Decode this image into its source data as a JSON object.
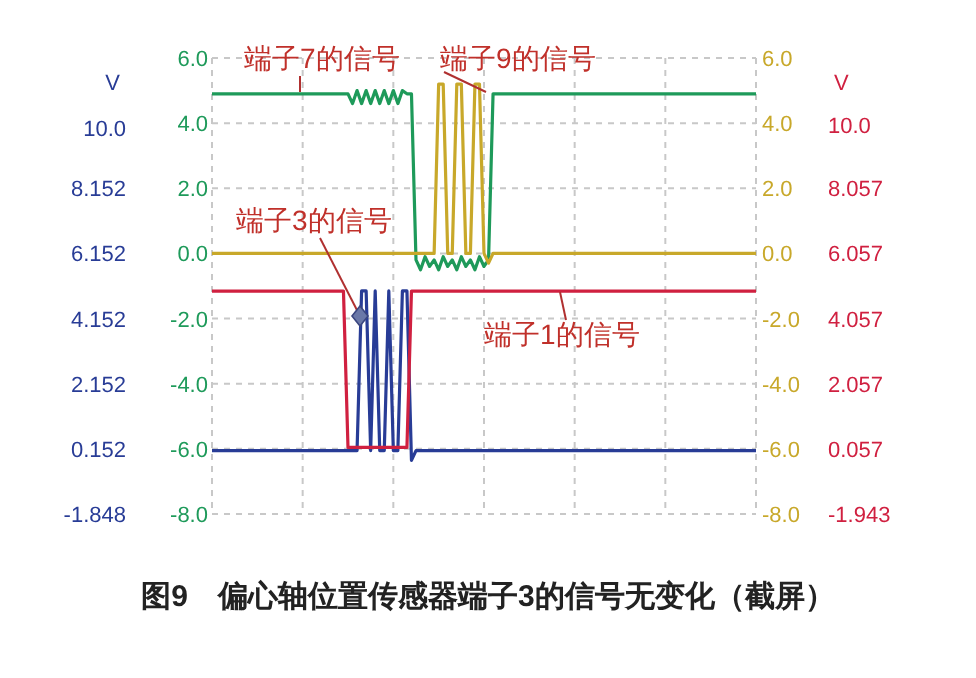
{
  "chart_data": {
    "type": "line",
    "categories": [
      null,
      null,
      null,
      null,
      null,
      null,
      null,
      null,
      null,
      null,
      null,
      null,
      null,
      null,
      null,
      null,
      null,
      null,
      null,
      null,
      null,
      null,
      null,
      null,
      null,
      null,
      null,
      null,
      null,
      null,
      null,
      null,
      null,
      null,
      null,
      null,
      null,
      null,
      null,
      null,
      null,
      null,
      null,
      null,
      null,
      null,
      null,
      null,
      null,
      null,
      null,
      null,
      null,
      null,
      null,
      null,
      null,
      null,
      null,
      null,
      null,
      null,
      null,
      null,
      null,
      null,
      null,
      null,
      null,
      null,
      null,
      null,
      null,
      null,
      null,
      null,
      null,
      null,
      null,
      null,
      null,
      null,
      null,
      null,
      null,
      null,
      null,
      null,
      null,
      null,
      null,
      null,
      null,
      null,
      null,
      null,
      null,
      null,
      null,
      null,
      null,
      null,
      null,
      null,
      null,
      null,
      null,
      null,
      null,
      null,
      null,
      null,
      null,
      null,
      null,
      null,
      null,
      null,
      null,
      null,
      null
    ],
    "series": [
      {
        "name": "端子7的信号",
        "color": "#1e9a5a",
        "values": [
          4.9,
          4.9,
          4.9,
          4.9,
          4.9,
          4.9,
          4.9,
          4.9,
          4.9,
          4.9,
          4.9,
          4.9,
          4.9,
          4.9,
          4.9,
          4.9,
          4.9,
          4.9,
          4.9,
          4.9,
          4.9,
          4.9,
          4.9,
          4.9,
          4.9,
          4.9,
          4.9,
          4.9,
          4.9,
          4.9,
          4.9,
          4.6,
          5.0,
          4.6,
          5.0,
          4.6,
          5.0,
          4.6,
          5.0,
          4.6,
          5.0,
          4.6,
          5.0,
          4.9,
          4.9,
          -0.2,
          -0.5,
          -0.1,
          -0.4,
          -0.2,
          -0.5,
          -0.1,
          -0.4,
          -0.2,
          -0.5,
          -0.1,
          -0.4,
          -0.2,
          -0.5,
          -0.1,
          -0.4,
          -0.2,
          4.9,
          4.9,
          4.9,
          4.9,
          4.9,
          4.9,
          4.9,
          4.9,
          4.9,
          4.9,
          4.9,
          4.9,
          4.9,
          4.9,
          4.9,
          4.9,
          4.9,
          4.9,
          4.9,
          4.9,
          4.9,
          4.9,
          4.9,
          4.9,
          4.9,
          4.9,
          4.9,
          4.9,
          4.9,
          4.9,
          4.9,
          4.9,
          4.9,
          4.9,
          4.9,
          4.9,
          4.9,
          4.9,
          4.9,
          4.9,
          4.9,
          4.9,
          4.9,
          4.9,
          4.9,
          4.9,
          4.9,
          4.9,
          4.9,
          4.9,
          4.9,
          4.9,
          4.9,
          4.9,
          4.9,
          4.9,
          4.9,
          4.9,
          4.9
        ]
      },
      {
        "name": "端子9的信号",
        "color": "#c8a82a",
        "values": [
          0.0,
          0.0,
          0.0,
          0.0,
          0.0,
          0.0,
          0.0,
          0.0,
          0.0,
          0.0,
          0.0,
          0.0,
          0.0,
          0.0,
          0.0,
          0.0,
          0.0,
          0.0,
          0.0,
          0.0,
          0.0,
          0.0,
          0.0,
          0.0,
          0.0,
          0.0,
          0.0,
          0.0,
          0.0,
          0.0,
          0.0,
          0.0,
          0.0,
          0.0,
          0.0,
          0.0,
          0.0,
          0.0,
          0.0,
          0.0,
          0.0,
          0.0,
          0.0,
          0.0,
          0.0,
          0.0,
          0.0,
          0.0,
          0.0,
          0.0,
          5.2,
          5.2,
          0.0,
          0.0,
          5.2,
          5.2,
          0.0,
          0.0,
          5.2,
          5.2,
          0.0,
          -0.3,
          0.0,
          0.0,
          0.0,
          0.0,
          0.0,
          0.0,
          0.0,
          0.0,
          0.0,
          0.0,
          0.0,
          0.0,
          0.0,
          0.0,
          0.0,
          0.0,
          0.0,
          0.0,
          0.0,
          0.0,
          0.0,
          0.0,
          0.0,
          0.0,
          0.0,
          0.0,
          0.0,
          0.0,
          0.0,
          0.0,
          0.0,
          0.0,
          0.0,
          0.0,
          0.0,
          0.0,
          0.0,
          0.0,
          0.0,
          0.0,
          0.0,
          0.0,
          0.0,
          0.0,
          0.0,
          0.0,
          0.0,
          0.0,
          0.0,
          0.0,
          0.0,
          0.0,
          0.0,
          0.0,
          0.0,
          0.0,
          0.0,
          0.0,
          0.0
        ]
      },
      {
        "name": "端子3的信号",
        "color": "#283c96",
        "axis": "y3",
        "values": [
          0.1,
          0.1,
          0.1,
          0.1,
          0.1,
          0.1,
          0.1,
          0.1,
          0.1,
          0.1,
          0.1,
          0.1,
          0.1,
          0.1,
          0.1,
          0.1,
          0.1,
          0.1,
          0.1,
          0.1,
          0.1,
          0.1,
          0.1,
          0.1,
          0.1,
          0.1,
          0.1,
          0.1,
          0.1,
          0.1,
          0.1,
          0.1,
          0.1,
          5.0,
          5.0,
          0.1,
          5.0,
          0.1,
          0.1,
          5.0,
          0.1,
          0.1,
          5.0,
          5.0,
          -0.2,
          0.1,
          0.1,
          0.1,
          0.1,
          0.1,
          0.1,
          0.1,
          0.1,
          0.1,
          0.1,
          0.1,
          0.1,
          0.1,
          0.1,
          0.1,
          0.1,
          0.1,
          0.1,
          0.1,
          0.1,
          0.1,
          0.1,
          0.1,
          0.1,
          0.1,
          0.1,
          0.1,
          0.1,
          0.1,
          0.1,
          0.1,
          0.1,
          0.1,
          0.1,
          0.1,
          0.1,
          0.1,
          0.1,
          0.1,
          0.1,
          0.1,
          0.1,
          0.1,
          0.1,
          0.1,
          0.1,
          0.1,
          0.1,
          0.1,
          0.1,
          0.1,
          0.1,
          0.1,
          0.1,
          0.1,
          0.1,
          0.1,
          0.1,
          0.1,
          0.1,
          0.1,
          0.1,
          0.1,
          0.1,
          0.1,
          0.1,
          0.1,
          0.1,
          0.1,
          0.1,
          0.1,
          0.1,
          0.1,
          0.1,
          0.1,
          0.1
        ]
      },
      {
        "name": "端子1的信号",
        "color": "#d02040",
        "axis": "y2",
        "values": [
          4.9,
          4.9,
          4.9,
          4.9,
          4.9,
          4.9,
          4.9,
          4.9,
          4.9,
          4.9,
          4.9,
          4.9,
          4.9,
          4.9,
          4.9,
          4.9,
          4.9,
          4.9,
          4.9,
          4.9,
          4.9,
          4.9,
          4.9,
          4.9,
          4.9,
          4.9,
          4.9,
          4.9,
          4.9,
          4.9,
          0.1,
          0.1,
          0.1,
          0.1,
          0.1,
          0.1,
          0.1,
          0.1,
          0.1,
          0.1,
          0.1,
          0.1,
          0.1,
          0.1,
          4.9,
          4.9,
          4.9,
          4.9,
          4.9,
          4.9,
          4.9,
          4.9,
          4.9,
          4.9,
          4.9,
          4.9,
          4.9,
          4.9,
          4.9,
          4.9,
          4.9,
          4.9,
          4.9,
          4.9,
          4.9,
          4.9,
          4.9,
          4.9,
          4.9,
          4.9,
          4.9,
          4.9,
          4.9,
          4.9,
          4.9,
          4.9,
          4.9,
          4.9,
          4.9,
          4.9,
          4.9,
          4.9,
          4.9,
          4.9,
          4.9,
          4.9,
          4.9,
          4.9,
          4.9,
          4.9,
          4.9,
          4.9,
          4.9,
          4.9,
          4.9,
          4.9,
          4.9,
          4.9,
          4.9,
          4.9,
          4.9,
          4.9,
          4.9,
          4.9,
          4.9,
          4.9,
          4.9,
          4.9,
          4.9,
          4.9,
          4.9,
          4.9,
          4.9,
          4.9,
          4.9,
          4.9,
          4.9,
          4.9,
          4.9,
          4.9,
          4.9
        ]
      }
    ],
    "ylim": [
      -8,
      6
    ],
    "yticks": [
      {
        "value": -8,
        "label": "-8.0"
      },
      {
        "value": -6,
        "label": "-6.0"
      },
      {
        "value": -4,
        "label": "-4.0"
      },
      {
        "value": -2,
        "label": "-2.0"
      },
      {
        "value": 0,
        "label": "0.0"
      },
      {
        "value": 2,
        "label": "2.0"
      },
      {
        "value": 4,
        "label": "4.0"
      },
      {
        "value": 6,
        "label": "6.0"
      }
    ],
    "y2lim": [
      -1.943,
      12.057
    ],
    "y2ticks": [
      -1.943,
      0.057,
      2.057,
      4.057,
      6.057,
      8.057,
      {
        "value": 10,
        "label": "10.0"
      }
    ],
    "y2label": "V",
    "y3lim": [
      -1.848,
      12.152
    ],
    "y3ticks": [
      -1.848,
      0.152,
      2.152,
      4.152,
      6.152,
      8.152,
      {
        "value": 10,
        "label": "10.0"
      }
    ],
    "y3label": "V",
    "grid": true,
    "legend": false,
    "marker": "none",
    "line_style": "solid",
    "annotations": [
      "图9　偏心轴位置传感器端子3的信号无变化（截屏）"
    ]
  }
}
